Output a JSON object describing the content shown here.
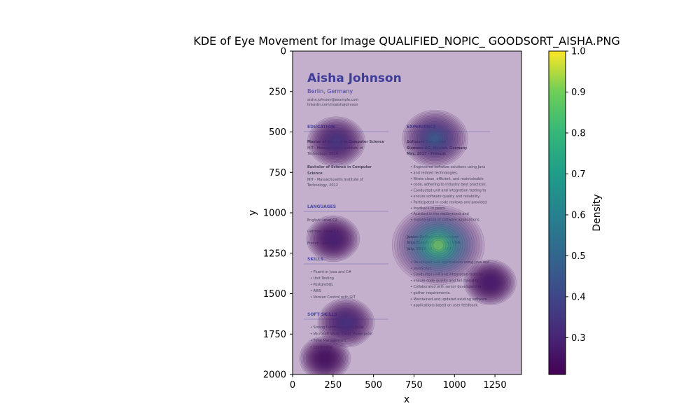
{
  "chart_data": {
    "type": "heatmap",
    "title": "KDE of Eye Movement for Image QUALIFIED_NOPIC_ GOODSORT_AISHA.PNG",
    "xlabel": "x",
    "ylabel": "y",
    "xlim": [
      0,
      1414
    ],
    "ylim": [
      2000,
      0
    ],
    "x_ticks": [
      0,
      250,
      500,
      750,
      1000,
      1250
    ],
    "y_ticks": [
      0,
      250,
      500,
      750,
      1000,
      1250,
      1500,
      1750,
      2000
    ],
    "colorbar": {
      "label": "Density",
      "colormap": "viridis",
      "range": [
        0.21,
        1.0
      ],
      "ticks": [
        0.3,
        0.4,
        0.5,
        0.6,
        0.7,
        0.8,
        0.9,
        1.0
      ]
    },
    "density_peaks": [
      {
        "x": 900,
        "y": 1200,
        "density": 1.0
      },
      {
        "x": 880,
        "y": 540,
        "density": 0.52
      },
      {
        "x": 270,
        "y": 560,
        "density": 0.38
      },
      {
        "x": 330,
        "y": 1680,
        "density": 0.36
      },
      {
        "x": 250,
        "y": 1160,
        "density": 0.3
      },
      {
        "x": 1220,
        "y": 1430,
        "density": 0.28
      },
      {
        "x": 200,
        "y": 1900,
        "density": 0.26
      }
    ],
    "background_document": {
      "name": "Aisha Johnson",
      "location": "Berlin, Germany",
      "contact": [
        "aisha.johnson@example.com",
        "linkedin.com/in/aishajohnson"
      ],
      "education_heading": "EDUCATION",
      "education": [
        {
          "degree": "Master of Science in Computer Science",
          "school": "MIT - Massachusetts Institute of",
          "school2": "Technology, 2014"
        },
        {
          "degree": "Bachelor of Science in Computer",
          "degree2": "Science",
          "school": "MIT - Massachusetts Institute of",
          "school2": "Technology, 2012"
        }
      ],
      "languages_heading": "LANGUAGES",
      "languages": [
        "English: Level C2",
        "German: Level C1",
        "French - Level B2"
      ],
      "skills_heading": "SKILLS",
      "skills": [
        "Fluent in Java and C#",
        "Unit Testing",
        "PostgreSQL",
        "AWS",
        "Version Control with GIT"
      ],
      "soft_skills_heading": "SOFT SKILLS",
      "soft_skills": [
        "Strong Communication Skills",
        "Microsoft Word, Excel, Powerpoint",
        "Time Management",
        "Leadership"
      ],
      "experience_heading": "EXPERIENCE",
      "job1": {
        "title": "Software Developer",
        "company": "Siemens AG, Munich, Germany",
        "dates": "May, 2017 - Present",
        "bullets": [
          "Engineered software solutions using Java",
          "and related technologies.",
          "Wrote clean, efficient, and maintainable",
          "code, adhering to industry best practices.",
          "Conducted unit and integration testing to",
          "ensure software quality and reliability.",
          "Participated in code reviews and provided",
          "feedback to peers.",
          "Assisted in the deployment and",
          "maintenance of software applications."
        ]
      },
      "job2": {
        "title": "Junior Software Developer",
        "company": "SmartLogic Baltimore, USA",
        "dates": "July, 2014 - April, 2017",
        "bullets": [
          "Developed web applications using Java and",
          "JavaScript.",
          "Conducted unit and integration tests to",
          "ensure code quality and functionality.",
          "Collaborated with senior developers to",
          "gather requirements.",
          "Maintained and updated existing software",
          "applications based on user feedback."
        ]
      }
    }
  }
}
